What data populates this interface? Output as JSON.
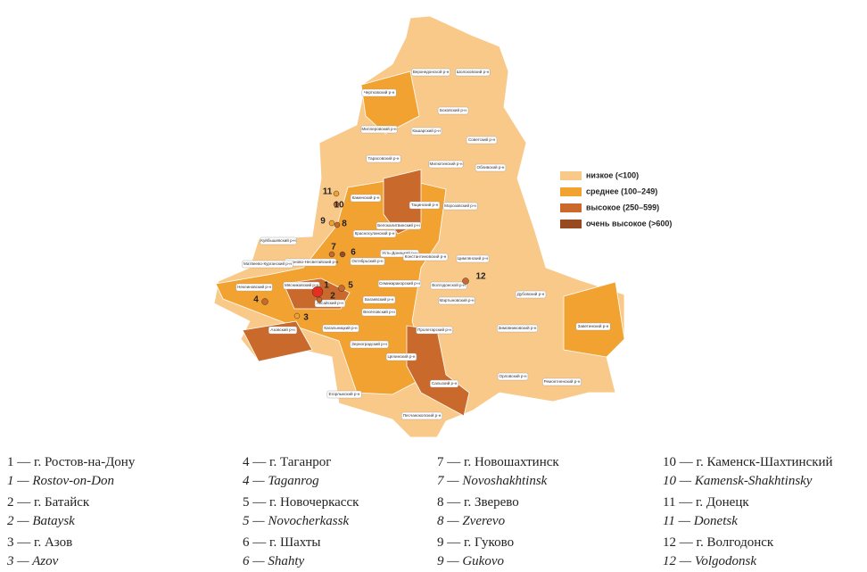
{
  "legend": [
    {
      "label": "низкое (<100)",
      "color": "#f9c98a"
    },
    {
      "label": "среднее (100–249)",
      "color": "#f2a230"
    },
    {
      "label": "высокое (250–599)",
      "color": "#c9692b"
    },
    {
      "label": "очень высокое (>600)",
      "color": "#974a1f"
    }
  ],
  "districts": [
    "Верхнедонской р-н",
    "Шолоховский р-н",
    "Чертковский р-н",
    "Боковский р-н",
    "Миллеровский р-н",
    "Кашарский р-н",
    "Советский р-н",
    "Тарасовский р-н",
    "Милютинский р-н",
    "Обливский р-н",
    "Каменский р-н",
    "Тацинский р-н",
    "Морозовский р-н",
    "Белокалитвинский р-н",
    "Красносулинский р-н",
    "Куйбышевский р-н",
    "Родионово-Несветайский р-н",
    "Матвеево-Курганский р-н",
    "Октябрьский р-н",
    "Усть-Донецкий р-н",
    "Константиновский р-н",
    "Цимлянский р-н",
    "Неклиновский р-н",
    "Мясниковский р-н",
    "Семикаракорский р-н",
    "Волгодонской р-н",
    "Аксайский р-н",
    "Багаевский р-н",
    "Весёловский р-н",
    "Мартыновский р-н",
    "Дубовский р-н",
    "Азовский р-н",
    "Кагальницкий р-н",
    "Пролетарский р-н",
    "Зимовниковский р-н",
    "Заветинский р-н",
    "Зерноградский р-н",
    "Орловский р-н",
    "Ремонтненский р-н",
    "Целинский р-н",
    "Сальский р-н",
    "Егорлыкский р-н",
    "Песчанокопский р-н"
  ],
  "city_markers": [
    "1",
    "2",
    "3",
    "4",
    "5",
    "6",
    "7",
    "8",
    "9",
    "10",
    "11",
    "12"
  ],
  "cities": [
    {
      "ru": "1 — г. Ростов-на-Дону",
      "en": "1 — Rostov-on-Don"
    },
    {
      "ru": "2 — г. Батайск",
      "en": "2 — Bataysk"
    },
    {
      "ru": "3 — г. Азов",
      "en": "3 — Azov"
    },
    {
      "ru": "4 — г. Таганрог",
      "en": "4 — Taganrog"
    },
    {
      "ru": "5 — г. Новочеркасск",
      "en": "5 — Novocherkassk"
    },
    {
      "ru": "6 — г. Шахты",
      "en": "6 — Shahty"
    },
    {
      "ru": "7 — г. Новошахтинск",
      "en": "7 — Novoshakhtinsk"
    },
    {
      "ru": "8 — г. Зверево",
      "en": "8 — Zverevo"
    },
    {
      "ru": "9 — г. Гуково",
      "en": "9 — Gukovo"
    },
    {
      "ru": "10 — г. Каменск-Шахтинский",
      "en": "10 — Kamensk-Shakhtinsky"
    },
    {
      "ru": "11 — г. Донецк",
      "en": "11 — Donetsk"
    },
    {
      "ru": "12 — г. Волгодонск",
      "en": "12 — Volgodonsk"
    }
  ]
}
